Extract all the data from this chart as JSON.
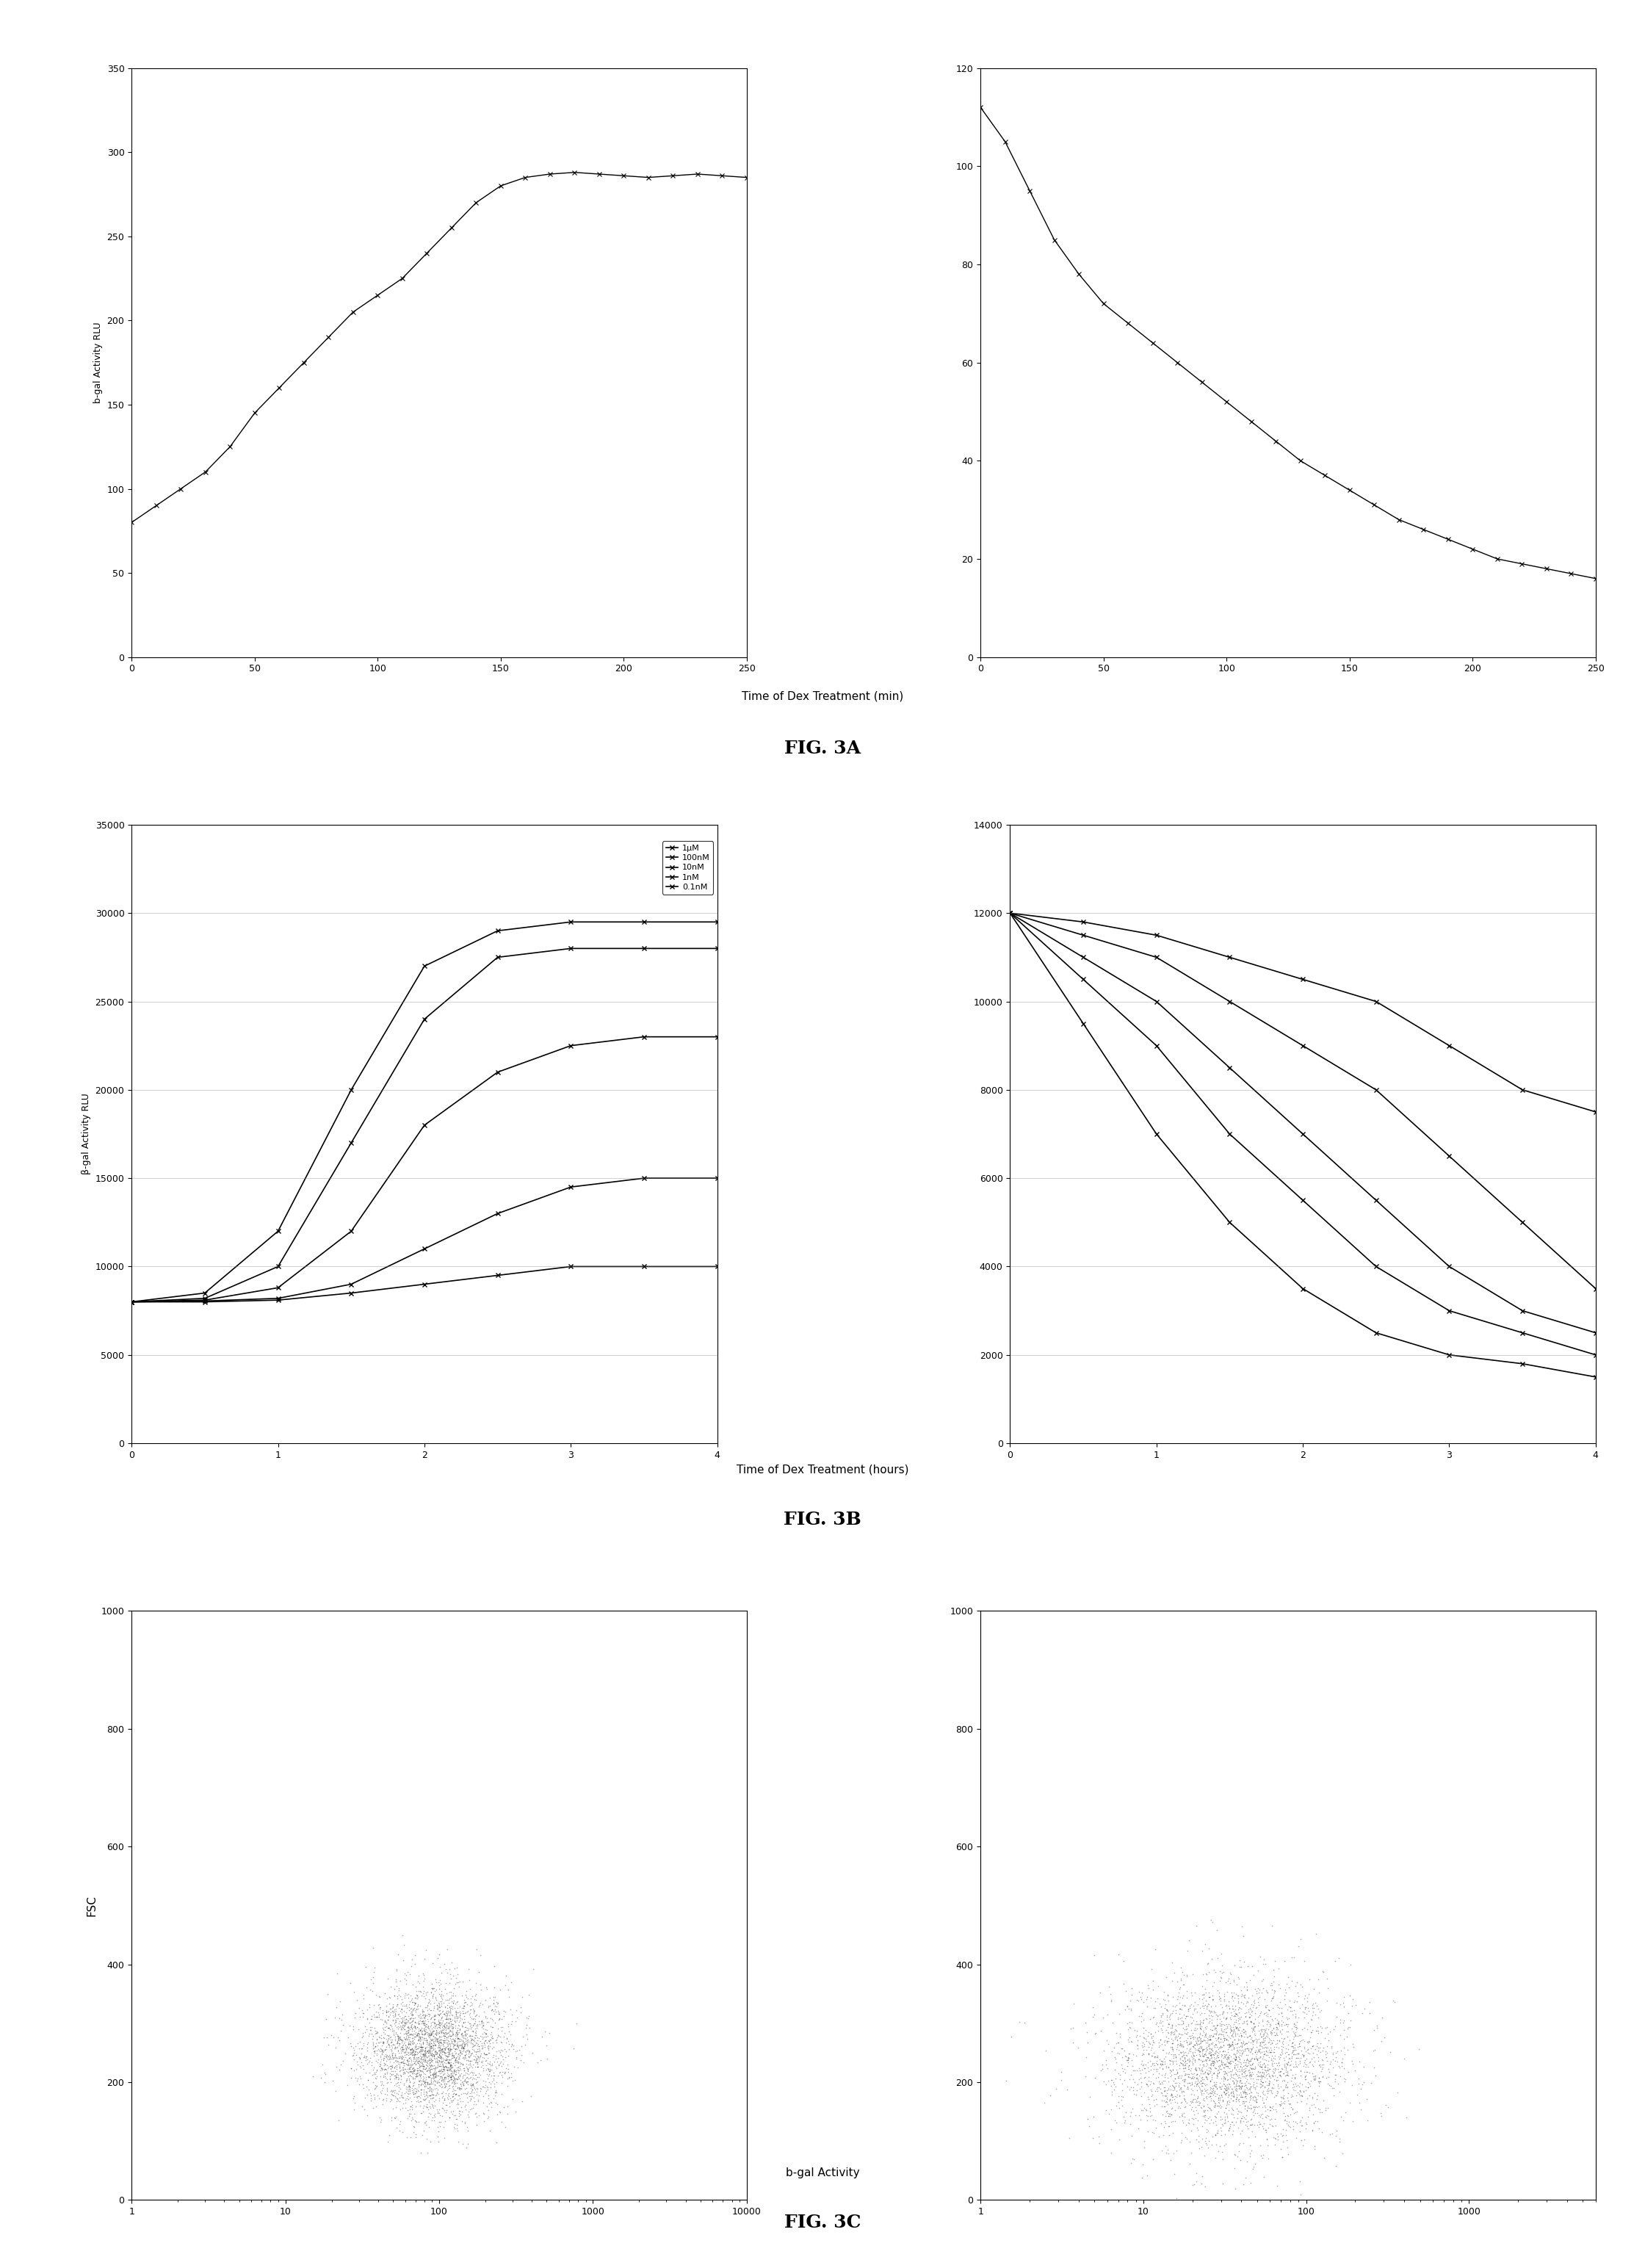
{
  "fig3a_left": {
    "x": [
      0,
      10,
      20,
      30,
      40,
      50,
      60,
      70,
      80,
      90,
      100,
      110,
      120,
      130,
      140,
      150,
      160,
      170,
      180,
      190,
      200,
      210,
      220,
      230,
      240,
      250
    ],
    "y": [
      80,
      90,
      100,
      110,
      125,
      145,
      160,
      175,
      190,
      205,
      215,
      225,
      240,
      255,
      270,
      280,
      285,
      287,
      288,
      287,
      286,
      285,
      286,
      287,
      286,
      285
    ],
    "ylabel": "b-gal Activity RLU",
    "xlim": [
      0,
      250
    ],
    "ylim": [
      0,
      350
    ],
    "yticks": [
      0,
      50,
      100,
      150,
      200,
      250,
      300,
      350
    ],
    "xticks": [
      0,
      50,
      100,
      150,
      200,
      250
    ]
  },
  "fig3a_right": {
    "x": [
      0,
      10,
      20,
      30,
      40,
      50,
      60,
      70,
      80,
      90,
      100,
      110,
      120,
      130,
      140,
      150,
      160,
      170,
      180,
      190,
      200,
      210,
      220,
      230,
      240,
      250
    ],
    "y": [
      112,
      105,
      95,
      85,
      78,
      72,
      68,
      64,
      60,
      56,
      52,
      48,
      44,
      40,
      37,
      34,
      31,
      28,
      26,
      24,
      22,
      20,
      19,
      18,
      17,
      16
    ],
    "xlim": [
      0,
      250
    ],
    "ylim": [
      0,
      120
    ],
    "yticks": [
      0,
      20,
      40,
      60,
      80,
      100,
      120
    ],
    "xticks": [
      0,
      50,
      100,
      150,
      200,
      250
    ]
  },
  "fig3a_xlabel": "Time of Dex Treatment (min)",
  "fig3a_label": "FIG. 3A",
  "fig3b_left": {
    "ylabel": "β-gal Activity RLU",
    "xlim": [
      0,
      4
    ],
    "ylim": [
      0,
      35000
    ],
    "yticks": [
      0,
      5000,
      10000,
      15000,
      20000,
      25000,
      30000,
      35000
    ],
    "xticks": [
      0,
      1,
      2,
      3,
      4
    ],
    "series": {
      "1μM": {
        "x": [
          0,
          0.5,
          1.0,
          1.5,
          2.0,
          2.5,
          3.0,
          3.5,
          4.0
        ],
        "y": [
          8000,
          8500,
          12000,
          20000,
          27000,
          29000,
          29500,
          29500,
          29500
        ]
      },
      "100nM": {
        "x": [
          0,
          0.5,
          1.0,
          1.5,
          2.0,
          2.5,
          3.0,
          3.5,
          4.0
        ],
        "y": [
          8000,
          8200,
          10000,
          17000,
          24000,
          27500,
          28000,
          28000,
          28000
        ]
      },
      "10nM": {
        "x": [
          0,
          0.5,
          1.0,
          1.5,
          2.0,
          2.5,
          3.0,
          3.5,
          4.0
        ],
        "y": [
          8000,
          8100,
          8800,
          12000,
          18000,
          21000,
          22500,
          23000,
          23000
        ]
      },
      "1nM": {
        "x": [
          0,
          0.5,
          1.0,
          1.5,
          2.0,
          2.5,
          3.0,
          3.5,
          4.0
        ],
        "y": [
          8000,
          8050,
          8200,
          9000,
          11000,
          13000,
          14500,
          15000,
          15000
        ]
      },
      "0.1nM": {
        "x": [
          0,
          0.5,
          1.0,
          1.5,
          2.0,
          2.5,
          3.0,
          3.5,
          4.0
        ],
        "y": [
          8000,
          8000,
          8100,
          8500,
          9000,
          9500,
          10000,
          10000,
          10000
        ]
      }
    }
  },
  "fig3b_right": {
    "xlim": [
      0,
      4
    ],
    "ylim": [
      0,
      14000
    ],
    "yticks": [
      0,
      2000,
      4000,
      6000,
      8000,
      10000,
      12000,
      14000
    ],
    "xticks": [
      0,
      1,
      2,
      3,
      4
    ],
    "series": {
      "0.1nM": {
        "x": [
          0,
          0.5,
          1.0,
          1.5,
          2.0,
          2.5,
          3.0,
          3.5,
          4.0
        ],
        "y": [
          12000,
          11800,
          11500,
          11000,
          10500,
          10000,
          9000,
          8000,
          7500
        ]
      },
      "1nM": {
        "x": [
          0,
          0.5,
          1.0,
          1.5,
          2.0,
          2.5,
          3.0,
          3.5,
          4.0
        ],
        "y": [
          12000,
          11500,
          11000,
          10000,
          9000,
          8000,
          6500,
          5000,
          3500
        ]
      },
      "10nM": {
        "x": [
          0,
          0.5,
          1.0,
          1.5,
          2.0,
          2.5,
          3.0,
          3.5,
          4.0
        ],
        "y": [
          12000,
          11000,
          10000,
          8500,
          7000,
          5500,
          4000,
          3000,
          2500
        ]
      },
      "100nM": {
        "x": [
          0,
          0.5,
          1.0,
          1.5,
          2.0,
          2.5,
          3.0,
          3.5,
          4.0
        ],
        "y": [
          12000,
          10500,
          9000,
          7000,
          5500,
          4000,
          3000,
          2500,
          2000
        ]
      },
      "1μM": {
        "x": [
          0,
          0.5,
          1.0,
          1.5,
          2.0,
          2.5,
          3.0,
          3.5,
          4.0
        ],
        "y": [
          12000,
          9500,
          7000,
          5000,
          3500,
          2500,
          2000,
          1800,
          1500
        ]
      }
    }
  },
  "fig3b_xlabel": "Time of Dex Treatment (hours)",
  "fig3b_label": "FIG. 3B",
  "fig3c_label": "FIG. 3C",
  "fig3c_xlabel": "b-gal Activity",
  "fig3c_left_ylabel": "FSC",
  "background_color": "#ffffff",
  "line_color": "#000000",
  "marker": "x",
  "grid_color": "#aaaaaa"
}
